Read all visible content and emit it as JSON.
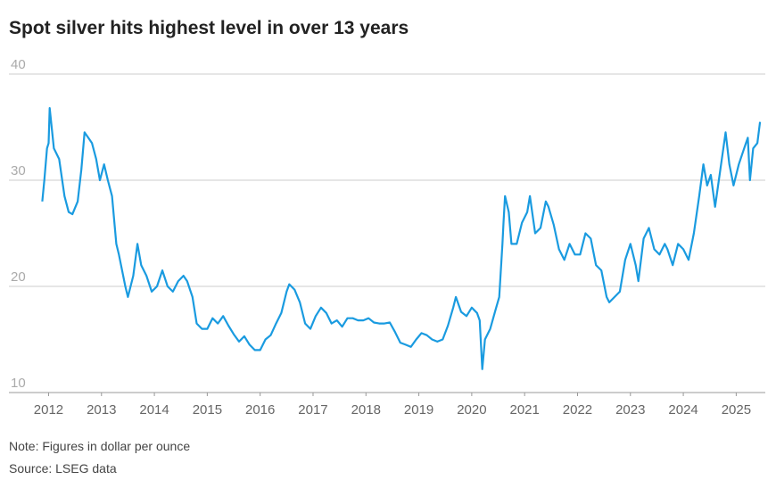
{
  "chart_data": {
    "type": "line",
    "title": "Spot silver hits highest level in over 13 years",
    "note": "Note: Figures in dollar per ounce",
    "source": "Source: LSEG data",
    "xlim": [
      2011.25,
      2025.55
    ],
    "xticks": [
      2012,
      2013,
      2014,
      2015,
      2016,
      2017,
      2018,
      2019,
      2020,
      2021,
      2022,
      2023,
      2024,
      2025
    ],
    "ylim": [
      10,
      40
    ],
    "yticks": [
      10,
      20,
      30,
      40
    ],
    "grid": true,
    "series": [
      {
        "color": "#1a9be0",
        "x": [
          2011.88,
          2011.92,
          2011.97,
          2012.0,
          2012.02,
          2012.1,
          2012.2,
          2012.3,
          2012.38,
          2012.45,
          2012.55,
          2012.62,
          2012.68,
          2012.75,
          2012.82,
          2012.9,
          2012.97,
          2013.05,
          2013.12,
          2013.2,
          2013.28,
          2013.33,
          2013.45,
          2013.5,
          2013.6,
          2013.68,
          2013.75,
          2013.85,
          2013.95,
          2014.05,
          2014.15,
          2014.25,
          2014.35,
          2014.45,
          2014.55,
          2014.62,
          2014.72,
          2014.8,
          2014.9,
          2015.0,
          2015.1,
          2015.2,
          2015.3,
          2015.4,
          2015.5,
          2015.6,
          2015.7,
          2015.8,
          2015.9,
          2016.0,
          2016.1,
          2016.2,
          2016.3,
          2016.4,
          2016.5,
          2016.55,
          2016.65,
          2016.75,
          2016.85,
          2016.95,
          2017.05,
          2017.15,
          2017.25,
          2017.35,
          2017.45,
          2017.55,
          2017.65,
          2017.75,
          2017.85,
          2017.95,
          2018.05,
          2018.15,
          2018.25,
          2018.35,
          2018.45,
          2018.55,
          2018.65,
          2018.75,
          2018.85,
          2018.95,
          2019.05,
          2019.15,
          2019.25,
          2019.35,
          2019.45,
          2019.55,
          2019.65,
          2019.7,
          2019.8,
          2019.9,
          2020.0,
          2020.1,
          2020.15,
          2020.2,
          2020.25,
          2020.35,
          2020.45,
          2020.52,
          2020.58,
          2020.6,
          2020.63,
          2020.7,
          2020.75,
          2020.85,
          2020.95,
          2021.05,
          2021.1,
          2021.2,
          2021.3,
          2021.4,
          2021.45,
          2021.55,
          2021.65,
          2021.75,
          2021.85,
          2021.95,
          2022.05,
          2022.15,
          2022.25,
          2022.35,
          2022.45,
          2022.55,
          2022.6,
          2022.7,
          2022.8,
          2022.9,
          2023.0,
          2023.1,
          2023.15,
          2023.25,
          2023.35,
          2023.45,
          2023.55,
          2023.65,
          2023.7,
          2023.8,
          2023.9,
          2024.0,
          2024.1,
          2024.2,
          2024.3,
          2024.38,
          2024.45,
          2024.52,
          2024.6,
          2024.7,
          2024.8,
          2024.87,
          2024.95,
          2025.05,
          2025.15,
          2025.22,
          2025.26,
          2025.32,
          2025.4,
          2025.45
        ],
        "values": [
          28,
          30,
          33,
          33.5,
          36.8,
          33,
          32,
          28.5,
          27,
          26.8,
          28,
          31,
          34.5,
          34,
          33.5,
          32,
          30,
          31.5,
          30,
          28.5,
          24,
          23,
          20,
          19,
          21,
          24,
          22,
          21,
          19.5,
          20,
          21.5,
          20,
          19.5,
          20.5,
          21,
          20.5,
          19,
          16.5,
          16,
          16,
          17,
          16.5,
          17.2,
          16.3,
          15.5,
          14.8,
          15.3,
          14.5,
          14,
          14,
          15,
          15.4,
          16.5,
          17.5,
          19.5,
          20.2,
          19.7,
          18.5,
          16.5,
          16,
          17.2,
          18,
          17.5,
          16.5,
          16.8,
          16.2,
          17,
          17,
          16.8,
          16.8,
          17,
          16.6,
          16.5,
          16.5,
          16.6,
          15.7,
          14.7,
          14.5,
          14.3,
          15,
          15.6,
          15.4,
          15,
          14.8,
          15,
          16.3,
          18,
          19,
          17.6,
          17.2,
          18,
          17.5,
          16.8,
          12.2,
          15,
          16,
          17.8,
          19,
          24,
          26,
          28.5,
          27,
          24,
          24,
          26,
          27,
          28.5,
          25,
          25.5,
          28,
          27.5,
          25.8,
          23.5,
          22.5,
          24,
          23,
          23,
          25,
          24.5,
          22,
          21.5,
          19,
          18.5,
          19,
          19.5,
          22.5,
          24,
          22,
          20.5,
          24.5,
          25.5,
          23.5,
          23,
          24,
          23.5,
          22,
          24,
          23.5,
          22.5,
          25,
          28.5,
          31.5,
          29.5,
          30.5,
          27.5,
          31,
          34.5,
          31.5,
          29.5,
          31.5,
          33,
          34,
          30,
          33,
          33.5,
          35.5
        ]
      }
    ]
  }
}
